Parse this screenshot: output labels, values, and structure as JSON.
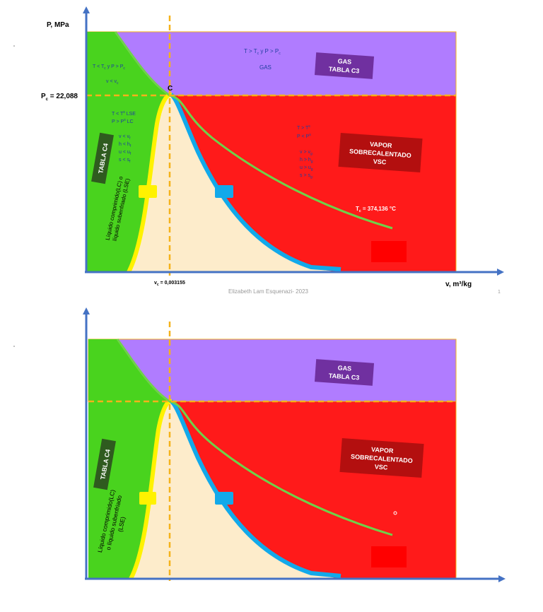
{
  "colors": {
    "gas": "#b07cff",
    "liquid": "#49d31e",
    "vapor": "#ff1a1a",
    "dome": "#fdeccb",
    "saturated_liquid_line": "#fff200",
    "saturated_vapor_line": "#12a9ea",
    "isotherm": "#6fd14a",
    "critical_dashes": "#f5b21a",
    "axis": "#4472c4",
    "tag_gas": "#7030a0",
    "tag_vapor": "#b30f0f",
    "tag_liquid": "#2f5b1f",
    "text_blue": "#1f3f9f"
  },
  "diagram1": {
    "y_axis_label": "P, MPa",
    "x_axis_label": "v, m³/kg",
    "pc_label": "P",
    "pc_sub": "c",
    "pc_value": " = 22,088",
    "vc_label": "v",
    "vc_sub": "c",
    "vc_value": " = 0,003155",
    "critical_point": "C",
    "gas_condition": "T > T",
    "gas_condition_sub1": "c",
    "gas_condition_mid": "  y  P > P",
    "gas_condition_sub2": "c",
    "gas_word": "GAS",
    "gas_tag_line1": "GAS",
    "gas_tag_line2": "TABLA C3",
    "liquid_top_cond": "T < T",
    "liquid_top_sub1": "c",
    "liquid_top_mid": "  y  P > P",
    "liquid_top_sub2": "c",
    "liquid_top_v": "v < v",
    "liquid_top_v_sub": "c",
    "liquid_cond1": "T < T",
    "liquid_cond1_sup": "s",
    "liquid_cond1_tail": "  LSE",
    "liquid_cond2": "P > P",
    "liquid_cond2_sup": "s",
    "liquid_cond2_tail": "  LC",
    "liquid_props": [
      "v < v",
      "h < h",
      "u < u",
      "s < s"
    ],
    "liquid_props_sub": "f",
    "liquid_tag": "TABLA C4",
    "liquid_rot_line1": "Líquido comprimido(LC) o",
    "liquid_rot_line2": "líquido subenfriado (LSE)",
    "vapor_cond1": "T > T",
    "vapor_cond1_sup": "s",
    "vapor_cond2": "P < P",
    "vapor_cond2_sup": "s",
    "vapor_props": [
      "v > v",
      "h > h",
      "u > u",
      "s > s"
    ],
    "vapor_props_sub": "g",
    "vapor_tag_line1": "VAPOR",
    "vapor_tag_line2": "SOBRECALENTADO",
    "vapor_tag_line3": "VSC",
    "tc_label": "T",
    "tc_sub": "c",
    "tc_value": " = 374,136 °C",
    "footer": "Elizabeth Lam Esquenazi- 2023",
    "page_number": "1"
  },
  "diagram2": {
    "gas_tag_line1": "GAS",
    "gas_tag_line2": "TABLA C3",
    "liquid_tag": "TABLA C4",
    "liquid_rot_line1": "Líquido comprimido(LC)",
    "liquid_rot_line2": "o líquido subenfriado",
    "liquid_rot_line3": "(LSE)",
    "vapor_tag_line1": "VAPOR",
    "vapor_tag_line2": "SOBRECALENTADO",
    "vapor_tag_line3": "VSC"
  }
}
